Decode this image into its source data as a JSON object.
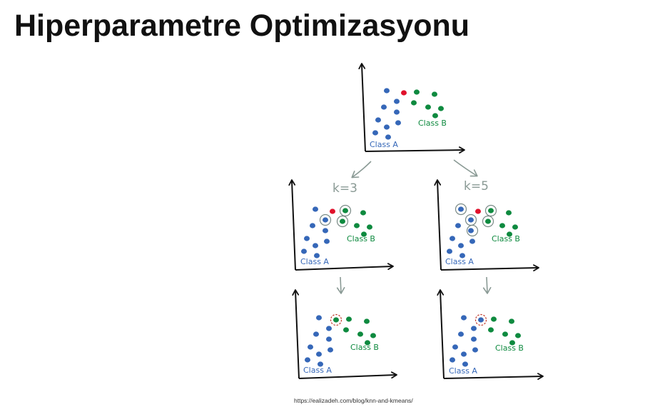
{
  "title": "Hiperparametre Optimizasyonu",
  "source_url": "https://ealizadeh.com/blog/knn-and-kmeans/",
  "labels": {
    "class_a": "Class A",
    "class_b": "Class B",
    "k3": "k=3",
    "k5": "k=5"
  },
  "colors": {
    "class_a": "#3567b8",
    "class_b": "#0e8a3f",
    "query": "#e0112b",
    "arrow": "#8a9a95",
    "axis": "#111111",
    "neighbor_ring": "#7a8a86",
    "prediction_ring": "#c0392b"
  },
  "panels": [
    {
      "id": "original",
      "neighbors": 0,
      "predicted_class": null
    },
    {
      "id": "k3-neighbors",
      "k": 3,
      "neighbors_a": 1,
      "neighbors_b": 2,
      "predicted_class": null
    },
    {
      "id": "k5-neighbors",
      "k": 5,
      "neighbors_a": 3,
      "neighbors_b": 2,
      "predicted_class": null
    },
    {
      "id": "k3-result",
      "k": 3,
      "predicted_class": "Class B"
    },
    {
      "id": "k5-result",
      "k": 5,
      "predicted_class": "Class A"
    }
  ]
}
